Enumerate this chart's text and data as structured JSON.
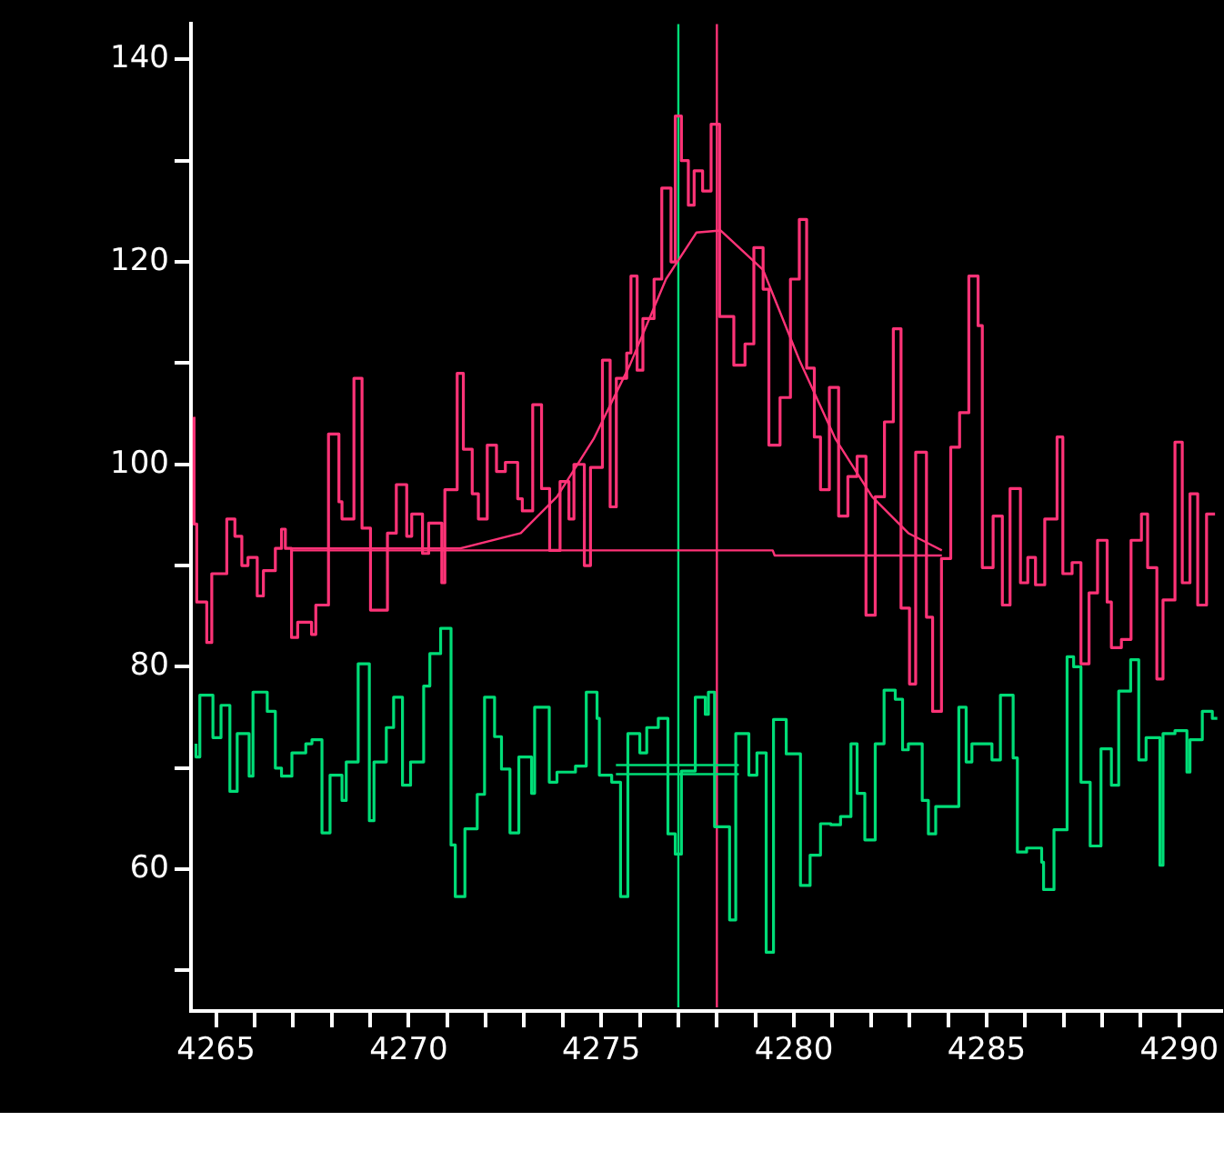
{
  "chart_data": {
    "type": "step",
    "xlim": [
      4264.35,
      4291.1
    ],
    "ylim": [
      46,
      143.5
    ],
    "marker": "none",
    "xticks": [
      4265,
      {
        "value": 4266,
        "label": null
      },
      {
        "value": 4267,
        "label": null
      },
      {
        "value": 4268,
        "label": null
      },
      {
        "value": 4269,
        "label": null
      },
      4270,
      {
        "value": 4271,
        "label": null
      },
      {
        "value": 4272,
        "label": null
      },
      {
        "value": 4273,
        "label": null
      },
      {
        "value": 4274,
        "label": null
      },
      4275,
      {
        "value": 4276,
        "label": null
      },
      {
        "value": 4277,
        "label": null
      },
      {
        "value": 4278,
        "label": null
      },
      {
        "value": 4279,
        "label": null
      },
      4280,
      {
        "value": 4281,
        "label": null
      },
      {
        "value": 4282,
        "label": null
      },
      {
        "value": 4283,
        "label": null
      },
      {
        "value": 4284,
        "label": null
      },
      4285,
      {
        "value": 4286,
        "label": null
      },
      {
        "value": 4287,
        "label": null
      },
      {
        "value": 4288,
        "label": null
      },
      {
        "value": 4289,
        "label": null
      },
      4290
    ],
    "yticks": [
      {
        "value": 50,
        "label": null
      },
      60,
      {
        "value": 70,
        "label": null
      },
      80,
      {
        "value": 90,
        "label": null
      },
      100,
      {
        "value": 110,
        "label": null
      },
      120,
      {
        "value": 130,
        "label": null
      },
      140
    ],
    "series": [
      {
        "color": "#ff3377",
        "x": [
          4264.43,
          4264.5,
          4264.76,
          4264.89,
          4265.28,
          4265.49,
          4265.67,
          4265.83,
          4266.07,
          4266.23,
          4266.54,
          4266.7,
          4266.8,
          4266.96,
          4267.12,
          4267.48,
          4267.59,
          4267.92,
          4268.19,
          4268.27,
          4268.58,
          4268.79,
          4269.01,
          4269.45,
          4269.68,
          4269.95,
          4270.08,
          4270.36,
          4270.52,
          4270.86,
          4270.94,
          4271.26,
          4271.42,
          4271.65,
          4271.81,
          4272.04,
          4272.28,
          4272.51,
          4272.83,
          4272.95,
          4273.22,
          4273.45,
          4273.66,
          4273.93,
          4274.16,
          4274.29,
          4274.56,
          4274.72,
          4275.03,
          4275.23,
          4275.39,
          4275.66,
          4275.77,
          4275.93,
          4276.08,
          4276.37,
          4276.57,
          4276.81,
          4276.92,
          4277.08,
          4277.26,
          4277.41,
          4277.63,
          4277.85,
          4278.07,
          4278.44,
          4278.73,
          4278.96,
          4279.2,
          4279.35,
          4279.64,
          4279.91,
          4280.14,
          4280.33,
          4280.53,
          4280.69,
          4280.92,
          4281.16,
          4281.4,
          4281.64,
          4281.87,
          4282.11,
          4282.35,
          4282.58,
          4282.78,
          4283.0,
          4283.16,
          4283.44,
          4283.6,
          4283.83,
          4284.07,
          4284.3,
          4284.54,
          4284.78,
          4284.89,
          4285.17,
          4285.41,
          4285.61,
          4285.88,
          4286.07,
          4286.27,
          4286.51,
          4286.83,
          4286.98,
          4287.22,
          4287.45,
          4287.66,
          4287.88,
          4288.13,
          4288.24,
          4288.5,
          4288.75,
          4289.02,
          4289.18,
          4289.42,
          4289.58,
          4289.89,
          4290.08,
          4290.28,
          4290.48,
          4290.71,
          4290.93
        ],
        "values": [
          104.7,
          94.1,
          86.4,
          82.4,
          89.2,
          94.6,
          92.9,
          90.0,
          90.8,
          87.0,
          89.5,
          91.7,
          93.6,
          91.7,
          82.9,
          84.4,
          83.2,
          86.1,
          103.0,
          96.3,
          94.6,
          108.5,
          93.7,
          85.6,
          93.2,
          98.0,
          92.9,
          95.1,
          91.2,
          94.2,
          88.3,
          97.5,
          109.0,
          101.5,
          97.1,
          94.6,
          101.9,
          99.3,
          100.2,
          96.6,
          95.4,
          105.9,
          97.6,
          91.5,
          98.3,
          94.6,
          100.0,
          90.0,
          99.7,
          110.3,
          95.8,
          108.5,
          111.0,
          118.6,
          109.3,
          114.4,
          118.3,
          127.3,
          120.0,
          134.4,
          130.0,
          125.6,
          129.0,
          127.0,
          133.6,
          114.6,
          109.8,
          111.9,
          121.4,
          117.3,
          101.9,
          106.6,
          118.3,
          124.2,
          109.5,
          102.7,
          97.5,
          107.6,
          94.9,
          98.8,
          100.8,
          85.1,
          96.8,
          104.2,
          113.4,
          85.8,
          78.3,
          101.2,
          84.9,
          75.6,
          90.7,
          101.7,
          105.1,
          118.6,
          113.7,
          89.8,
          94.9,
          86.1,
          97.6,
          88.3,
          90.8,
          88.1,
          94.6,
          102.7,
          89.2,
          90.3,
          80.3,
          87.3,
          92.5,
          86.4,
          81.9,
          82.7,
          92.5,
          95.1,
          89.8,
          78.8,
          86.6,
          102.2,
          88.3,
          97.1,
          86.1,
          95.1
        ]
      },
      {
        "color": "#00dd77",
        "x": [
          4264.48,
          4264.58,
          4264.92,
          4265.13,
          4265.36,
          4265.55,
          4265.86,
          4265.96,
          4266.33,
          4266.54,
          4266.7,
          4266.97,
          4267.33,
          4267.49,
          4267.75,
          4267.96,
          4268.27,
          4268.38,
          4268.69,
          4268.98,
          4269.1,
          4269.42,
          4269.61,
          4269.84,
          4270.05,
          4270.39,
          4270.55,
          4270.83,
          4271.1,
          4271.21,
          4271.46,
          4271.78,
          4271.97,
          4272.23,
          4272.41,
          4272.63,
          4272.86,
          4273.19,
          4273.27,
          4273.65,
          4273.85,
          4274.33,
          4274.61,
          4274.89,
          4274.95,
          4275.27,
          4275.5,
          4275.69,
          4276.0,
          4276.18,
          4276.48,
          4276.73,
          4276.92,
          4277.08,
          4277.44,
          4277.7,
          4277.78,
          4277.94,
          4278.33,
          4278.49,
          4278.83,
          4279.04,
          4279.28,
          4279.47,
          4279.8,
          4280.17,
          4280.42,
          4280.69,
          4280.96,
          4281.21,
          4281.48,
          4281.64,
          4281.84,
          4282.11,
          4282.34,
          4282.63,
          4282.82,
          4282.97,
          4283.33,
          4283.49,
          4283.68,
          4284.28,
          4284.47,
          4284.62,
          4285.14,
          4285.36,
          4285.69,
          4285.8,
          4286.04,
          4286.43,
          4286.48,
          4286.75,
          4287.09,
          4287.26,
          4287.45,
          4287.69,
          4287.97,
          4288.24,
          4288.43,
          4288.74,
          4288.95,
          4289.14,
          4289.5,
          4289.58,
          4289.89,
          4290.2,
          4290.28,
          4290.6,
          4290.86,
          4290.99
        ],
        "values": [
          72.4,
          71.1,
          77.2,
          73.0,
          76.2,
          67.7,
          73.4,
          69.2,
          77.5,
          75.6,
          70.0,
          69.2,
          71.5,
          72.4,
          72.8,
          63.6,
          69.3,
          66.8,
          70.6,
          80.3,
          64.8,
          70.6,
          74.0,
          77.0,
          68.3,
          70.6,
          78.1,
          81.3,
          83.8,
          62.4,
          57.3,
          64.0,
          67.4,
          77.0,
          73.1,
          69.9,
          63.6,
          71.1,
          67.5,
          76.0,
          68.6,
          69.6,
          70.2,
          77.5,
          74.9,
          69.3,
          68.6,
          57.3,
          73.4,
          71.5,
          74.0,
          74.9,
          63.5,
          61.5,
          69.7,
          77.0,
          75.3,
          77.5,
          64.2,
          55.0,
          73.4,
          69.3,
          71.5,
          51.8,
          74.8,
          71.4,
          58.4,
          61.4,
          64.5,
          64.4,
          65.2,
          72.4,
          67.5,
          62.9,
          72.4,
          77.7,
          76.8,
          71.8,
          72.4,
          66.8,
          63.5,
          66.2,
          76.0,
          70.6,
          72.4,
          70.8,
          77.2,
          71.0,
          61.7,
          62.1,
          60.7,
          58.0,
          63.9,
          81.0,
          80.0,
          68.6,
          62.3,
          71.9,
          68.3,
          77.6,
          80.7,
          70.8,
          73.0,
          60.4,
          73.4,
          73.7,
          69.6,
          72.8,
          75.6,
          74.9
        ]
      },
      {
        "type": "line",
        "color": "#ff3377",
        "x": [
          4266.93,
          4269.0,
          4271.34,
          4272.91,
          4273.85,
          4274.8,
          4275.74,
          4276.68,
          4277.47,
          4278.1,
          4279.2,
          4280.14,
          4281.08,
          4282.03,
          4282.97,
          4283.84
        ],
        "values": [
          91.7,
          91.7,
          91.7,
          93.2,
          96.8,
          102.5,
          109.8,
          118.3,
          122.9,
          123.1,
          119.2,
          110.3,
          102.5,
          96.8,
          93.2,
          91.5
        ]
      },
      {
        "type": "line",
        "color": "#ff3377",
        "x": [
          4266.93,
          4279.45,
          4279.5,
          4283.84
        ],
        "values": [
          91.5,
          91.5,
          91.0,
          91.0
        ]
      },
      {
        "type": "line",
        "color": "#00dd77",
        "x": [
          4275.38,
          4278.57
        ],
        "values": [
          70.3,
          70.3
        ]
      },
      {
        "type": "line",
        "color": "#00dd77",
        "x": [
          4275.38,
          4278.57
        ],
        "values": [
          69.4,
          69.4
        ]
      }
    ],
    "ref_lines": [
      {
        "axis": "x",
        "value": 4277,
        "color": "#00dd77"
      },
      {
        "axis": "x",
        "value": 4278,
        "color": "#ff3377"
      }
    ]
  }
}
